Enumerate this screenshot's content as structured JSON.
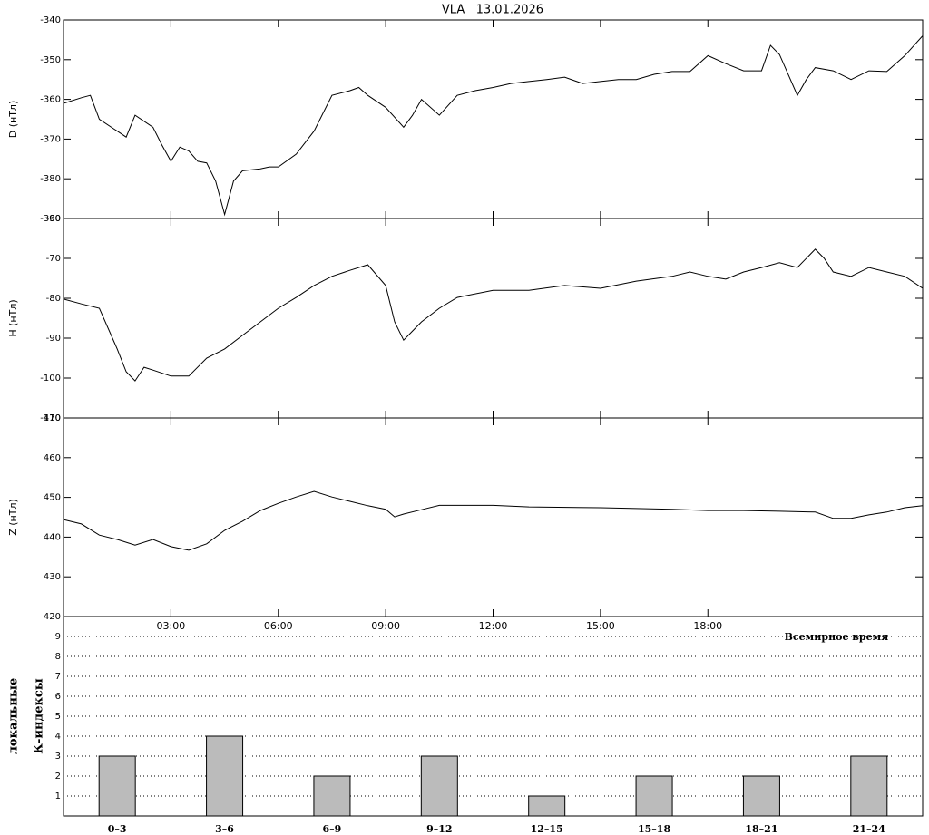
{
  "chart_data": [
    {
      "type": "line",
      "title": "VLA   13.01.2026",
      "ylabel": "D (нТл)",
      "x": [
        0,
        0.5,
        0.75,
        1,
        1.5,
        1.75,
        2,
        2.5,
        2.75,
        3,
        3.25,
        3.5,
        3.75,
        4,
        4.25,
        4.5,
        4.75,
        5,
        5.5,
        5.75,
        6,
        6.5,
        7,
        7.5,
        8,
        8.25,
        8.5,
        9,
        9.5,
        9.75,
        10,
        10.5,
        11,
        11.5,
        12,
        12.5,
        13,
        13.5,
        14,
        14.5,
        15,
        15.5,
        16,
        16.5,
        17,
        17.5,
        18,
        18.5,
        19,
        19.5,
        19.75,
        20,
        20.5,
        20.75,
        21,
        21.5,
        22,
        22.5,
        23,
        23.5,
        24
      ],
      "values": [
        -361,
        -359.6,
        -359,
        -365,
        -368,
        -369.5,
        -364,
        -367,
        -371.5,
        -375.6,
        -372,
        -373,
        -375.6,
        -376,
        -380.6,
        -389,
        -380.6,
        -378,
        -377.5,
        -377,
        -377,
        -373.8,
        -368,
        -359,
        -357.8,
        -357,
        -359,
        -362,
        -367,
        -364,
        -360,
        -364,
        -359,
        -357.8,
        -357,
        -356,
        -355.5,
        -355,
        -354.4,
        -356,
        -355.5,
        -355,
        -355,
        -353.7,
        -353,
        -353,
        -349,
        -351,
        -352.8,
        -352.8,
        -346.4,
        -348.7,
        -359,
        -355,
        -352,
        -352.8,
        -355,
        -352.8,
        -353,
        -349,
        -344
      ],
      "xlim": [
        0,
        24
      ],
      "ylim": [
        -390,
        -340
      ],
      "yticks": [
        -390,
        -380,
        -370,
        -360,
        -350,
        -340
      ],
      "color": "#000000"
    },
    {
      "type": "line",
      "ylabel": "H (нТл)",
      "x": [
        0,
        0.5,
        1,
        1.5,
        1.75,
        2,
        2.25,
        2.5,
        3,
        3.5,
        4,
        4.5,
        5,
        5.5,
        6,
        6.5,
        7,
        7.5,
        8,
        8.5,
        9,
        9.25,
        9.5,
        9.75,
        10,
        10.5,
        11,
        12,
        13,
        14,
        15,
        16,
        17,
        17.5,
        18,
        18.5,
        19,
        19.5,
        20,
        20.5,
        21,
        21.25,
        21.5,
        22,
        22.5,
        23,
        23.5,
        24
      ],
      "values": [
        -80.2,
        -81.4,
        -82.5,
        -92.7,
        -98.4,
        -100.7,
        -97.3,
        -98,
        -99.5,
        -99.5,
        -95,
        -92.7,
        -89.3,
        -85.9,
        -82.5,
        -79.8,
        -76.8,
        -74.5,
        -73,
        -71.6,
        -76.8,
        -85.9,
        -90.5,
        -88.2,
        -85.9,
        -82.5,
        -79.8,
        -78,
        -78,
        -76.8,
        -77.5,
        -75.7,
        -74.5,
        -73.4,
        -74.5,
        -75.2,
        -73.4,
        -72.3,
        -71.1,
        -72.3,
        -67.7,
        -70,
        -73.4,
        -74.5,
        -72.3,
        -73.4,
        -74.5,
        -77.5
      ],
      "xlim": [
        0,
        24
      ],
      "ylim": [
        -110,
        -60
      ],
      "yticks": [
        -110,
        -100,
        -90,
        -80,
        -70,
        -60
      ],
      "color": "#000000"
    },
    {
      "type": "line",
      "ylabel": "Z (нТл)",
      "xlabel": "Всемирное время",
      "x": [
        0,
        0.5,
        1,
        1.5,
        2,
        2.5,
        3,
        3.5,
        4,
        4.5,
        5,
        5.5,
        6,
        6.5,
        7,
        7.5,
        8,
        8.5,
        9,
        9.25,
        9.5,
        10,
        10.5,
        12,
        13,
        15,
        17,
        18,
        19,
        20,
        21,
        21.5,
        22,
        22.5,
        23,
        23.5,
        24
      ],
      "values": [
        444.4,
        443.3,
        440.5,
        439.4,
        438,
        439.4,
        437.6,
        436.7,
        438.3,
        441.7,
        444,
        446.7,
        448.5,
        450.1,
        451.5,
        450.1,
        449,
        447.9,
        447,
        445.1,
        445.8,
        446.9,
        448,
        448,
        447.6,
        447.4,
        447,
        446.7,
        446.7,
        446.5,
        446.3,
        444.7,
        444.7,
        445.6,
        446.3,
        447.4,
        447.9
      ],
      "xlim": [
        0,
        24
      ],
      "ylim": [
        420,
        470
      ],
      "yticks": [
        420,
        430,
        440,
        450,
        460,
        470
      ],
      "xticks": [
        {
          "value": 3,
          "label": "03:00"
        },
        {
          "value": 6,
          "label": "06:00"
        },
        {
          "value": 9,
          "label": "09:00"
        },
        {
          "value": 12,
          "label": "12:00"
        },
        {
          "value": 15,
          "label": "15:00"
        },
        {
          "value": 18,
          "label": "18:00"
        }
      ],
      "color": "#000000"
    },
    {
      "type": "bar",
      "ylabel": [
        "локальные",
        "К-индексы"
      ],
      "categories": [
        "0–3",
        "3–6",
        "6–9",
        "9–12",
        "12–15",
        "15–18",
        "18–21",
        "21–24"
      ],
      "values": [
        3,
        4,
        2,
        3,
        1,
        2,
        2,
        3
      ],
      "ylim": [
        0,
        10
      ],
      "yticks": [
        1,
        2,
        3,
        4,
        5,
        6,
        7,
        8,
        9
      ],
      "grid": true,
      "color": "#bbbbbb"
    }
  ]
}
